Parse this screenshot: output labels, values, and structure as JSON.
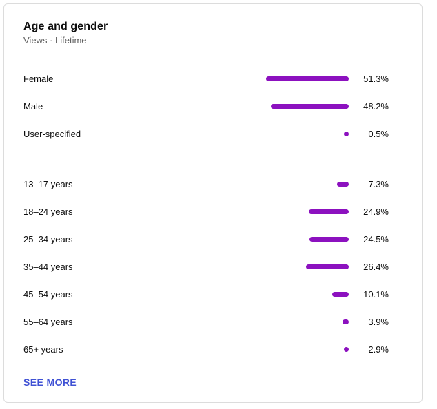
{
  "card": {
    "title": "Age and gender",
    "subtitle": "Views · Lifetime",
    "see_more_label": "SEE MORE",
    "bar_color": "#8c11bf",
    "link_color": "#3f51d4",
    "gender_rows": [
      {
        "label": "Female",
        "value": "51.3%",
        "pct": 51.3
      },
      {
        "label": "Male",
        "value": "48.2%",
        "pct": 48.2
      },
      {
        "label": "User-specified",
        "value": "0.5%",
        "pct": 0.5
      }
    ],
    "age_rows": [
      {
        "label": "13–17 years",
        "value": "7.3%",
        "pct": 7.3
      },
      {
        "label": "18–24 years",
        "value": "24.9%",
        "pct": 24.9
      },
      {
        "label": "25–34 years",
        "value": "24.5%",
        "pct": 24.5
      },
      {
        "label": "35–44 years",
        "value": "26.4%",
        "pct": 26.4
      },
      {
        "label": "45–54 years",
        "value": "10.1%",
        "pct": 10.1
      },
      {
        "label": "55–64 years",
        "value": "3.9%",
        "pct": 3.9
      },
      {
        "label": "65+ years",
        "value": "2.9%",
        "pct": 2.9
      }
    ]
  },
  "chart_data": {
    "type": "bar",
    "orientation": "horizontal",
    "unit": "percent",
    "title": "Age and gender",
    "subtitle": "Views · Lifetime",
    "xlim": [
      0,
      100
    ],
    "grid": false,
    "legend": false,
    "bar_color": "#8c11bf",
    "series": [
      {
        "name": "Gender",
        "categories": [
          "Female",
          "Male",
          "User-specified"
        ],
        "values": [
          51.3,
          48.2,
          0.5
        ]
      },
      {
        "name": "Age",
        "categories": [
          "13–17 years",
          "18–24 years",
          "25–34 years",
          "35–44 years",
          "45–54 years",
          "55–64 years",
          "65+ years"
        ],
        "values": [
          7.3,
          24.9,
          24.5,
          26.4,
          10.1,
          3.9,
          2.9
        ]
      }
    ]
  }
}
